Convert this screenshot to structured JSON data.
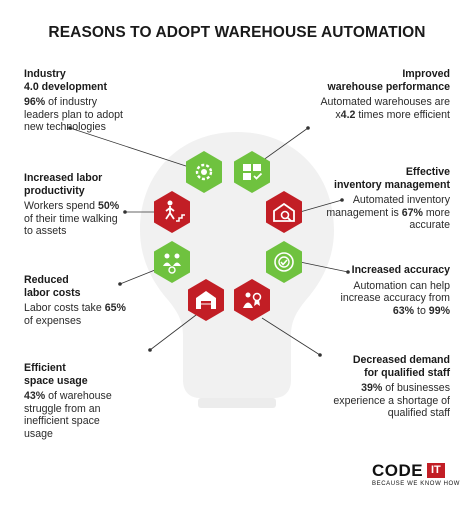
{
  "title": "REASONS TO ADOPT WAREHOUSE AUTOMATION",
  "colors": {
    "green": "#6fc23f",
    "green_dark": "#5aa52f",
    "red": "#c21e25",
    "red_dark": "#a5181e",
    "bulb": "#f1f1f1"
  },
  "left_items": [
    {
      "head": [
        "Industry",
        "4.0 development"
      ],
      "body_pre": "",
      "body_bold": "96%",
      "body_post": " of industry leaders plan to adopt new technologies"
    },
    {
      "head": [
        "Increased labor",
        "productivity"
      ],
      "body_pre": "Workers spend ",
      "body_bold": "50%",
      "body_post": " of their time walking to assets"
    },
    {
      "head": [
        "Reduced",
        "labor costs"
      ],
      "body_pre": "Labor costs take ",
      "body_bold": "65%",
      "body_post": " of expenses"
    },
    {
      "head": [
        "Efficient",
        "space usage"
      ],
      "body_pre": "",
      "body_bold": "43%",
      "body_post": " of warehouse struggle from an inefficient space usage"
    }
  ],
  "right_items": [
    {
      "head": [
        "Improved",
        "warehouse performance"
      ],
      "body": "Automated warehouses are x<b>4.2</b> times more efficient"
    },
    {
      "head": [
        "Effective",
        "inventory management"
      ],
      "body": "Automated inventory management is <b>67%</b> more accurate"
    },
    {
      "head": [
        "Increased accuracy"
      ],
      "body": "Automation can help increase accuracy from <b>63%</b> to <b>99%</b>"
    },
    {
      "head": [
        "Decreased demand",
        "for qualified staff"
      ],
      "body": "<b>39%</b> of businesses experience a shortage of qualified staff"
    }
  ],
  "icons": [
    {
      "name": "gear-icon",
      "color": "green"
    },
    {
      "name": "boxes-checklist-icon",
      "color": "green"
    },
    {
      "name": "walking-worker-stairs-icon",
      "color": "red"
    },
    {
      "name": "warehouse-magnifier-icon",
      "color": "red"
    },
    {
      "name": "people-money-icon",
      "color": "green"
    },
    {
      "name": "target-check-icon",
      "color": "green"
    },
    {
      "name": "warehouse-building-icon",
      "color": "red"
    },
    {
      "name": "worker-award-icon",
      "color": "red"
    }
  ],
  "logo": {
    "code": "CODE",
    "it": "IT",
    "tagline": "BECAUSE WE KNOW HOW"
  }
}
